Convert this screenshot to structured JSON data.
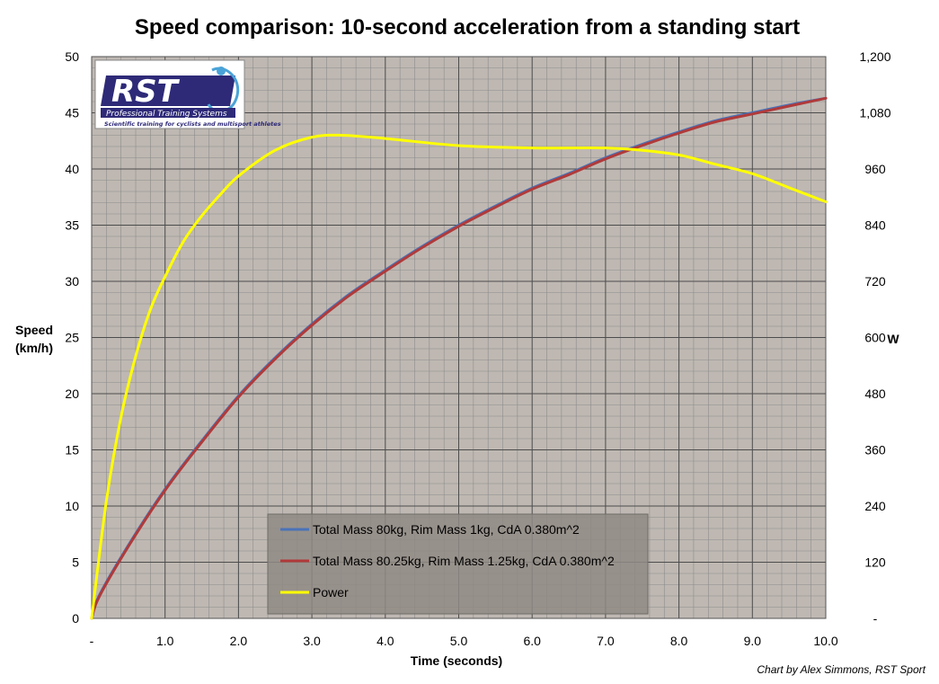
{
  "chart_data": {
    "type": "line",
    "title": "Speed comparison: 10-second acceleration from a standing start",
    "xlabel": "Time (seconds)",
    "ylabel_lines": [
      "Speed",
      "(km/h)"
    ],
    "y2label": "W",
    "credit": "Chart by Alex Simmons, RST Sport",
    "xlim": [
      0,
      10
    ],
    "ylim": [
      0,
      50
    ],
    "y2lim": [
      0,
      1200
    ],
    "x_ticks": [
      0,
      1,
      2,
      3,
      4,
      5,
      6,
      7,
      8,
      9,
      10
    ],
    "x_tick_labels": [
      "-",
      "1.0",
      "2.0",
      "3.0",
      "4.0",
      "5.0",
      "6.0",
      "7.0",
      "8.0",
      "9.0",
      "10.0"
    ],
    "y_ticks": [
      0,
      5,
      10,
      15,
      20,
      25,
      30,
      35,
      40,
      45,
      50
    ],
    "y_tick_labels": [
      "0",
      "5",
      "10",
      "15",
      "20",
      "25",
      "30",
      "35",
      "40",
      "45",
      "50"
    ],
    "y2_ticks": [
      0,
      120,
      240,
      360,
      480,
      600,
      720,
      840,
      960,
      1080,
      1200
    ],
    "y2_tick_labels": [
      "-",
      "120",
      "240",
      "360",
      "480",
      "600",
      "720",
      "840",
      "960",
      "1,080",
      "1,200"
    ],
    "grid": true,
    "legend_position": "bottom-center",
    "series": [
      {
        "name": "Total Mass 80kg, Rim Mass 1kg, CdA 0.380m^2",
        "axis": "left",
        "color": "#4a72b8",
        "x": [
          0,
          0.1,
          0.5,
          1.0,
          1.5,
          2.0,
          2.5,
          3.0,
          3.5,
          4.0,
          4.5,
          5.0,
          5.5,
          6.0,
          6.5,
          7.0,
          7.5,
          8.0,
          8.5,
          9.0,
          9.5,
          10.0
        ],
        "y": [
          0,
          2.0,
          6.5,
          11.5,
          15.8,
          19.8,
          23.2,
          26.2,
          28.8,
          31.0,
          33.1,
          35.0,
          36.7,
          38.3,
          39.6,
          41.0,
          42.2,
          43.3,
          44.3,
          45.0,
          45.7,
          46.3
        ]
      },
      {
        "name": "Total Mass 80.25kg, Rim Mass 1.25kg, CdA 0.380m^2",
        "axis": "left",
        "color": "#b03a3a",
        "x": [
          0,
          0.1,
          0.5,
          1.0,
          1.5,
          2.0,
          2.5,
          3.0,
          3.5,
          4.0,
          4.5,
          5.0,
          5.5,
          6.0,
          6.5,
          7.0,
          7.5,
          8.0,
          8.5,
          9.0,
          9.5,
          10.0
        ],
        "y": [
          0,
          1.9,
          6.4,
          11.4,
          15.7,
          19.7,
          23.1,
          26.1,
          28.7,
          30.9,
          33.0,
          34.9,
          36.6,
          38.2,
          39.5,
          40.9,
          42.1,
          43.2,
          44.2,
          44.9,
          45.6,
          46.3
        ]
      },
      {
        "name": "Power",
        "axis": "right",
        "color": "#ffff00",
        "x": [
          0,
          0.2,
          0.4,
          0.6,
          0.8,
          1.0,
          1.25,
          1.5,
          1.75,
          2.0,
          2.5,
          3.0,
          3.4,
          4.0,
          5.0,
          6.0,
          7.0,
          7.5,
          8.0,
          8.5,
          9.0,
          9.5,
          10.0
        ],
        "y": [
          0,
          250,
          430,
          560,
          660,
          730,
          805,
          860,
          905,
          945,
          1000,
          1028,
          1032,
          1025,
          1010,
          1005,
          1005,
          1000,
          990,
          970,
          950,
          920,
          890
        ]
      }
    ]
  }
}
